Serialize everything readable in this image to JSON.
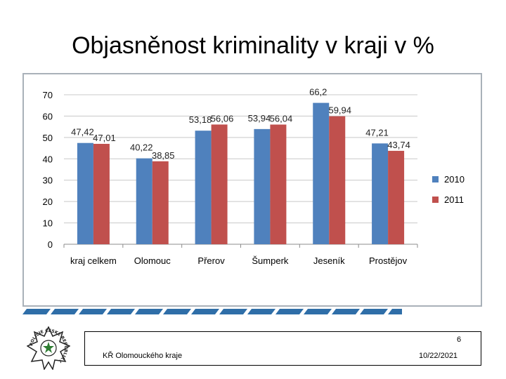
{
  "slide": {
    "title": "Objasněnost kriminality v kraji v %"
  },
  "footer": {
    "organization": "KŘ Olomouckého kraje",
    "page_number": "6",
    "date": "10/22/2021"
  },
  "logo": {
    "text": "POLICIE ČESKÉ REPUBLIKY"
  },
  "chart_data": {
    "type": "bar",
    "title": "",
    "xlabel": "",
    "ylabel": "",
    "ylim": [
      0,
      70
    ],
    "yticks": [
      0,
      10,
      20,
      30,
      40,
      50,
      60,
      70
    ],
    "grid": true,
    "legend_position": "right",
    "categories": [
      "kraj celkem",
      "Olomouc",
      "Přerov",
      "Šumperk",
      "Jeseník",
      "Prostějov"
    ],
    "series": [
      {
        "name": "2010",
        "color": "#4f81bd",
        "values": [
          47.42,
          40.22,
          53.18,
          53.94,
          66.2,
          47.21
        ],
        "labels": [
          "47,42",
          "40,22",
          "53,18",
          "53,94",
          "66,2",
          "47,21"
        ]
      },
      {
        "name": "2011",
        "color": "#c0504d",
        "values": [
          47.01,
          38.85,
          56.06,
          56.04,
          59.94,
          43.74
        ],
        "labels": [
          "47,01",
          "38,85",
          "56,06",
          "56,04",
          "59,94",
          "43,74"
        ]
      }
    ]
  }
}
